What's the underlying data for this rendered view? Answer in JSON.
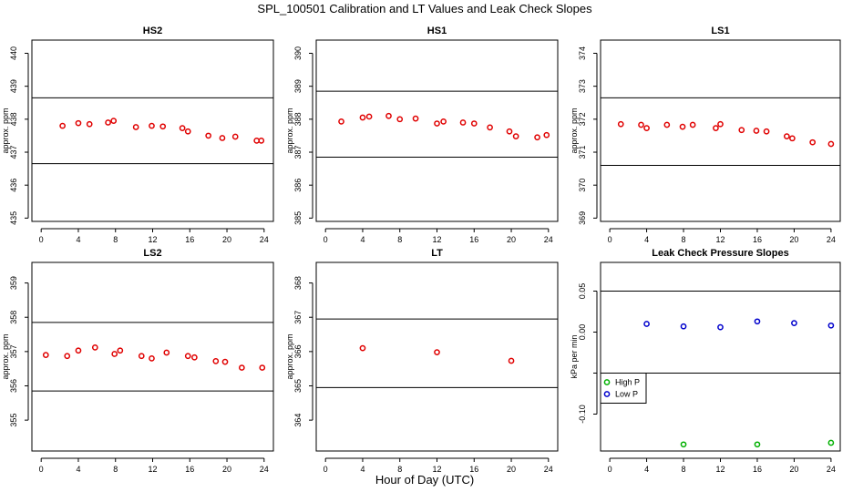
{
  "figure": {
    "title": "SPL_100501  Calibration and LT Values and Leak Check Slopes",
    "xlabel": "Hour of Day (UTC)"
  },
  "colors": {
    "red": "#e00000",
    "green": "#00b000",
    "blue": "#0000cc",
    "line": "#000000"
  },
  "chart_data": [
    {
      "id": "hs2",
      "type": "scatter",
      "title": "HS2",
      "ylabel": "approx. ppm",
      "xlim": [
        -1,
        25
      ],
      "ylim": [
        434.9,
        440.4
      ],
      "xticks": [
        0,
        4,
        8,
        12,
        16,
        20,
        24
      ],
      "yticks": [
        435,
        436,
        437,
        438,
        439,
        440
      ],
      "hlines": [
        438.65,
        436.65
      ],
      "series": [
        {
          "color": "red",
          "x": [
            2.3,
            4.0,
            5.2,
            7.2,
            7.8,
            10.2,
            11.9,
            13.1,
            15.2,
            15.8,
            18.0,
            19.5,
            20.9,
            23.2,
            23.7
          ],
          "y": [
            437.8,
            437.88,
            437.85,
            437.9,
            437.95,
            437.76,
            437.8,
            437.78,
            437.73,
            437.63,
            437.5,
            437.43,
            437.47,
            437.35,
            437.35
          ]
        }
      ]
    },
    {
      "id": "hs1",
      "type": "scatter",
      "title": "HS1",
      "ylabel": "approx. ppm",
      "xlim": [
        -1,
        25
      ],
      "ylim": [
        384.9,
        390.4
      ],
      "xticks": [
        0,
        4,
        8,
        12,
        16,
        20,
        24
      ],
      "yticks": [
        385,
        386,
        387,
        388,
        389,
        390
      ],
      "hlines": [
        388.85,
        386.85
      ],
      "series": [
        {
          "color": "red",
          "x": [
            1.7,
            4.0,
            4.7,
            6.8,
            8.0,
            9.7,
            12.0,
            12.7,
            14.8,
            16.0,
            17.7,
            19.8,
            20.5,
            22.8,
            23.8
          ],
          "y": [
            387.93,
            388.05,
            388.08,
            388.1,
            388.0,
            388.02,
            387.87,
            387.93,
            387.9,
            387.87,
            387.75,
            387.63,
            387.48,
            387.45,
            387.52
          ]
        }
      ]
    },
    {
      "id": "ls1",
      "type": "scatter",
      "title": "LS1",
      "ylabel": "approx. ppm",
      "xlim": [
        -1,
        25
      ],
      "ylim": [
        368.9,
        374.4
      ],
      "xticks": [
        0,
        4,
        8,
        12,
        16,
        20,
        24
      ],
      "yticks": [
        369,
        370,
        371,
        372,
        373,
        374
      ],
      "hlines": [
        372.65,
        370.6
      ],
      "series": [
        {
          "color": "red",
          "x": [
            1.2,
            3.4,
            4.0,
            6.2,
            7.9,
            9.0,
            11.5,
            12.0,
            14.3,
            15.9,
            17.0,
            19.2,
            19.8,
            22.0,
            24.0
          ],
          "y": [
            371.85,
            371.83,
            371.73,
            371.83,
            371.77,
            371.83,
            371.73,
            371.85,
            371.67,
            371.65,
            371.63,
            371.48,
            371.42,
            371.3,
            371.25
          ]
        }
      ]
    },
    {
      "id": "ls2",
      "type": "scatter",
      "title": "LS2",
      "ylabel": "approx. ppm",
      "xlim": [
        -1,
        25
      ],
      "ylim": [
        354.1,
        359.6
      ],
      "xticks": [
        0,
        4,
        8,
        12,
        16,
        20,
        24
      ],
      "yticks": [
        355,
        356,
        357,
        358,
        359
      ],
      "hlines": [
        357.85,
        355.85
      ],
      "series": [
        {
          "color": "red",
          "x": [
            0.5,
            2.8,
            4.0,
            5.8,
            7.9,
            8.5,
            10.8,
            11.9,
            13.5,
            15.8,
            16.5,
            18.8,
            19.8,
            21.6,
            23.8
          ],
          "y": [
            356.9,
            356.87,
            357.03,
            357.12,
            356.93,
            357.03,
            356.87,
            356.8,
            356.97,
            356.87,
            356.83,
            356.72,
            356.7,
            356.53,
            356.53
          ]
        }
      ]
    },
    {
      "id": "lt",
      "type": "scatter",
      "title": "LT",
      "ylabel": "approx. ppm",
      "xlim": [
        -1,
        25
      ],
      "ylim": [
        363.1,
        368.6
      ],
      "xticks": [
        0,
        4,
        8,
        12,
        16,
        20,
        24
      ],
      "yticks": [
        364,
        365,
        366,
        367,
        368
      ],
      "hlines": [
        366.95,
        364.95
      ],
      "series": [
        {
          "color": "red",
          "x": [
            4.0,
            12.0,
            20.0
          ],
          "y": [
            366.1,
            365.98,
            365.73
          ]
        }
      ]
    },
    {
      "id": "leak",
      "type": "scatter",
      "title": "Leak Check Pressure Slopes",
      "ylabel": "kPa per min",
      "xlim": [
        -1,
        25
      ],
      "ylim": [
        -0.145,
        0.085
      ],
      "xticks": [
        0,
        4,
        8,
        12,
        16,
        20,
        24
      ],
      "yticks": [
        -0.1,
        -0.05,
        0.0,
        0.05
      ],
      "yticklabels": [
        "-0.10",
        "",
        "0.00",
        "0.05"
      ],
      "hlines": [
        0.05,
        -0.05
      ],
      "legend": {
        "placement": "bottom-left",
        "entries": [
          "High P",
          "Low P"
        ]
      },
      "series": [
        {
          "name": "High P",
          "color": "green",
          "x": [
            8.0,
            16.0,
            24.0
          ],
          "y": [
            -0.137,
            -0.137,
            -0.135
          ]
        },
        {
          "name": "Low P",
          "color": "blue",
          "x": [
            4.0,
            8.0,
            12.0,
            16.0,
            20.0,
            24.0
          ],
          "y": [
            0.01,
            0.007,
            0.006,
            0.013,
            0.011,
            0.008
          ]
        }
      ]
    }
  ]
}
